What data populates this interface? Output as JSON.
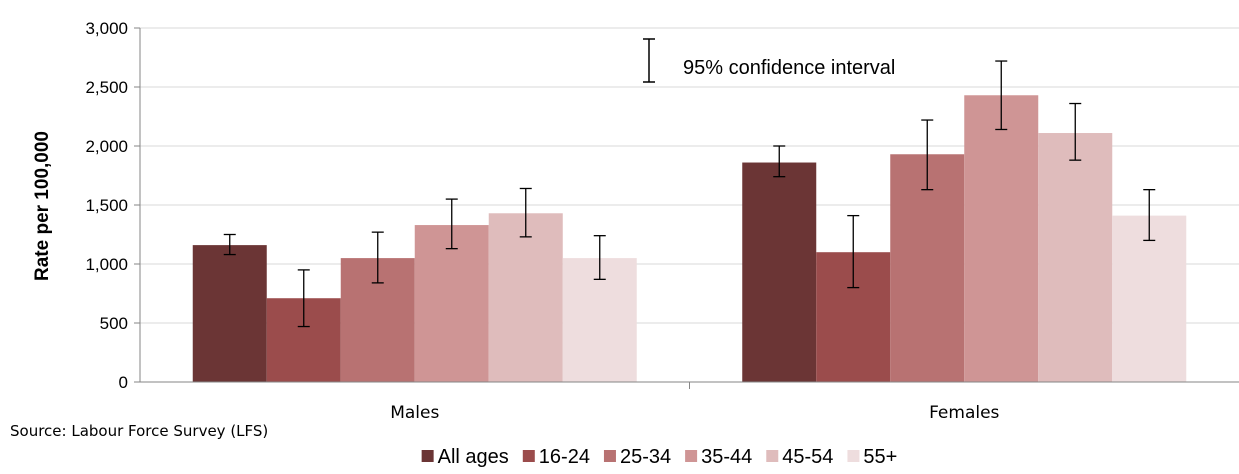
{
  "chart_data": {
    "type": "bar",
    "title": "",
    "xlabel": "",
    "ylabel": "Rate per 100,000",
    "ylim": [
      0,
      3000
    ],
    "yticks": [
      "0",
      "500",
      "1,000",
      "1,500",
      "2,000",
      "2,500",
      "3,000"
    ],
    "ytick_values": [
      0,
      500,
      1000,
      1500,
      2000,
      2500,
      3000
    ],
    "categories": [
      "Males",
      "Females"
    ],
    "series": [
      {
        "name": "All ages",
        "values": [
          1160,
          1860
        ],
        "ci_low": [
          1080,
          1740
        ],
        "ci_high": [
          1250,
          2000
        ],
        "color": "#6b3535"
      },
      {
        "name": "16-24",
        "values": [
          710,
          1100
        ],
        "ci_low": [
          470,
          800
        ],
        "ci_high": [
          950,
          1410
        ],
        "color": "#9b4c4c"
      },
      {
        "name": "25-34",
        "values": [
          1050,
          1930
        ],
        "ci_low": [
          840,
          1630
        ],
        "ci_high": [
          1270,
          2220
        ],
        "color": "#b87272"
      },
      {
        "name": "35-44",
        "values": [
          1330,
          2430
        ],
        "ci_low": [
          1130,
          2140
        ],
        "ci_high": [
          1550,
          2720
        ],
        "color": "#cf9595"
      },
      {
        "name": "45-54",
        "values": [
          1430,
          2110
        ],
        "ci_low": [
          1230,
          1880
        ],
        "ci_high": [
          1640,
          2360
        ],
        "color": "#dfbcbc"
      },
      {
        "name": "55+",
        "values": [
          1050,
          1410
        ],
        "ci_low": [
          870,
          1200
        ],
        "ci_high": [
          1240,
          1630
        ],
        "color": "#eeddde"
      }
    ],
    "grid": true,
    "legend_position": "bottom",
    "annotation": "95% confidence interval",
    "source": "Source: Labour Force Survey (LFS)"
  }
}
